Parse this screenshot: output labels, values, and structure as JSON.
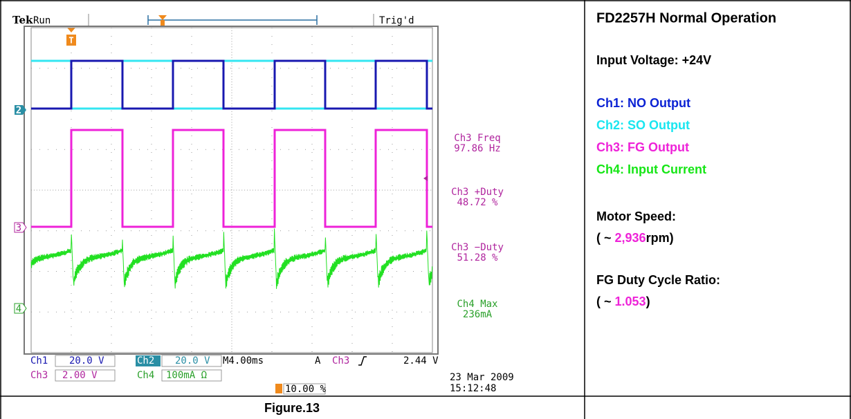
{
  "scope": {
    "header": {
      "brand": "Tek",
      "state": "Run",
      "trigger_status": "Trig'd"
    },
    "channel_markers": [
      "2",
      "3",
      "4"
    ],
    "measurements": [
      {
        "label": "Ch3 Freq",
        "value": "97.86 Hz"
      },
      {
        "label": "Ch3 +Duty",
        "value": "48.72 %"
      },
      {
        "label": "Ch3 −Duty",
        "value": "51.28 %"
      },
      {
        "label": "Ch4 Max",
        "value": "236mA"
      }
    ],
    "readout": {
      "channels": [
        {
          "channel": "Ch1",
          "scale": "20.0 V"
        },
        {
          "channel": "Ch2",
          "scale": "20.0 V"
        },
        {
          "channel": "Ch3",
          "scale": "2.00 V"
        },
        {
          "channel": "Ch4",
          "scale": "100mA Ω"
        }
      ],
      "timebase": "M4.00ms",
      "trigger": {
        "mode": "A",
        "source": "Ch3",
        "level": "2.44 V"
      },
      "trigger_position": "10.00 %"
    },
    "date": "23 Mar 2009",
    "time": "15:12:48"
  },
  "notes": {
    "title": "FD2257H Normal Operation",
    "input_voltage": "Input Voltage: +24V",
    "channels": [
      "Ch1: NO Output",
      "Ch2: SO Output",
      "Ch3: FG Output",
      "Ch4: Input Current"
    ],
    "motor_speed": {
      "label": "Motor Speed:",
      "prefix": "( ~ ",
      "value": "2,936",
      "suffix": "rpm)"
    },
    "duty_ratio": {
      "label": "FG Duty Cycle Ratio:",
      "prefix": "( ~ ",
      "value": "1.053",
      "suffix": ")"
    }
  },
  "caption": "Figure.13"
}
